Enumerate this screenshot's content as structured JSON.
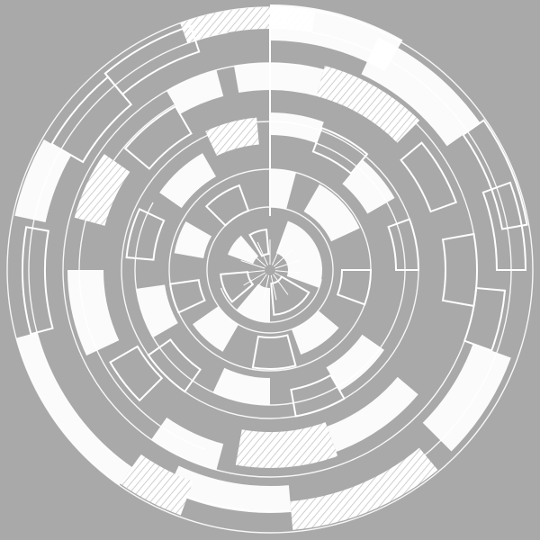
{
  "colors": {
    "background": "#a9a9a9",
    "ink": "#ffffff",
    "hatch": "#dcdcdc"
  },
  "icon": "concentric-segmented-radial-graphic"
}
